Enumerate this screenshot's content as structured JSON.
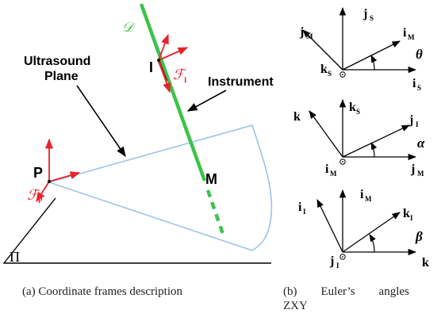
{
  "left_panel": {
    "labels": {
      "curve": "𝒟",
      "instrument_frame_point": "I",
      "instrument_frame": "ℱ",
      "instrument_frame_sub": "I",
      "instrument": "Instrument",
      "ultrasound_line1": "Ultrasound",
      "ultrasound_line2": "Plane",
      "probe_point": "P",
      "probe_frame": "ℱ",
      "probe_frame_sub": "P",
      "intersection_point": "M",
      "plane": "Π"
    },
    "caption": "(a) Coordinate frames description"
  },
  "right_panel": {
    "frame1": {
      "up": "j",
      "up_sub": "S",
      "upleft": "j",
      "upleft_sub": "M",
      "right_up": "i",
      "right_up_sub": "M",
      "origin": "k",
      "origin_sub": "S",
      "right": "i",
      "right_sub": "S",
      "angle": "θ"
    },
    "frame2": {
      "up": "k",
      "up_sub": "S",
      "upleft": "k",
      "upleft_sub": "",
      "right_up": "j",
      "right_up_sub": "I",
      "origin": "i",
      "origin_sub": "M",
      "right": "j",
      "right_sub": "M",
      "angle": "α"
    },
    "frame3": {
      "up": "i",
      "up_sub": "M",
      "upleft": "i",
      "upleft_sub": "I",
      "right_up": "k",
      "right_up_sub": "I",
      "origin": "j",
      "origin_sub": "I",
      "right": "k",
      "right_sub": "",
      "angle": "β"
    },
    "caption_line1": "(b)        Euler’s        angles",
    "caption_line2": "ZXY"
  },
  "colors": {
    "instrument_green": "#3cc34a",
    "frame_red": "#e8222a",
    "plane_blue": "#9cc4ea",
    "ink": "#000000",
    "dark_red": "#8b1a12"
  }
}
